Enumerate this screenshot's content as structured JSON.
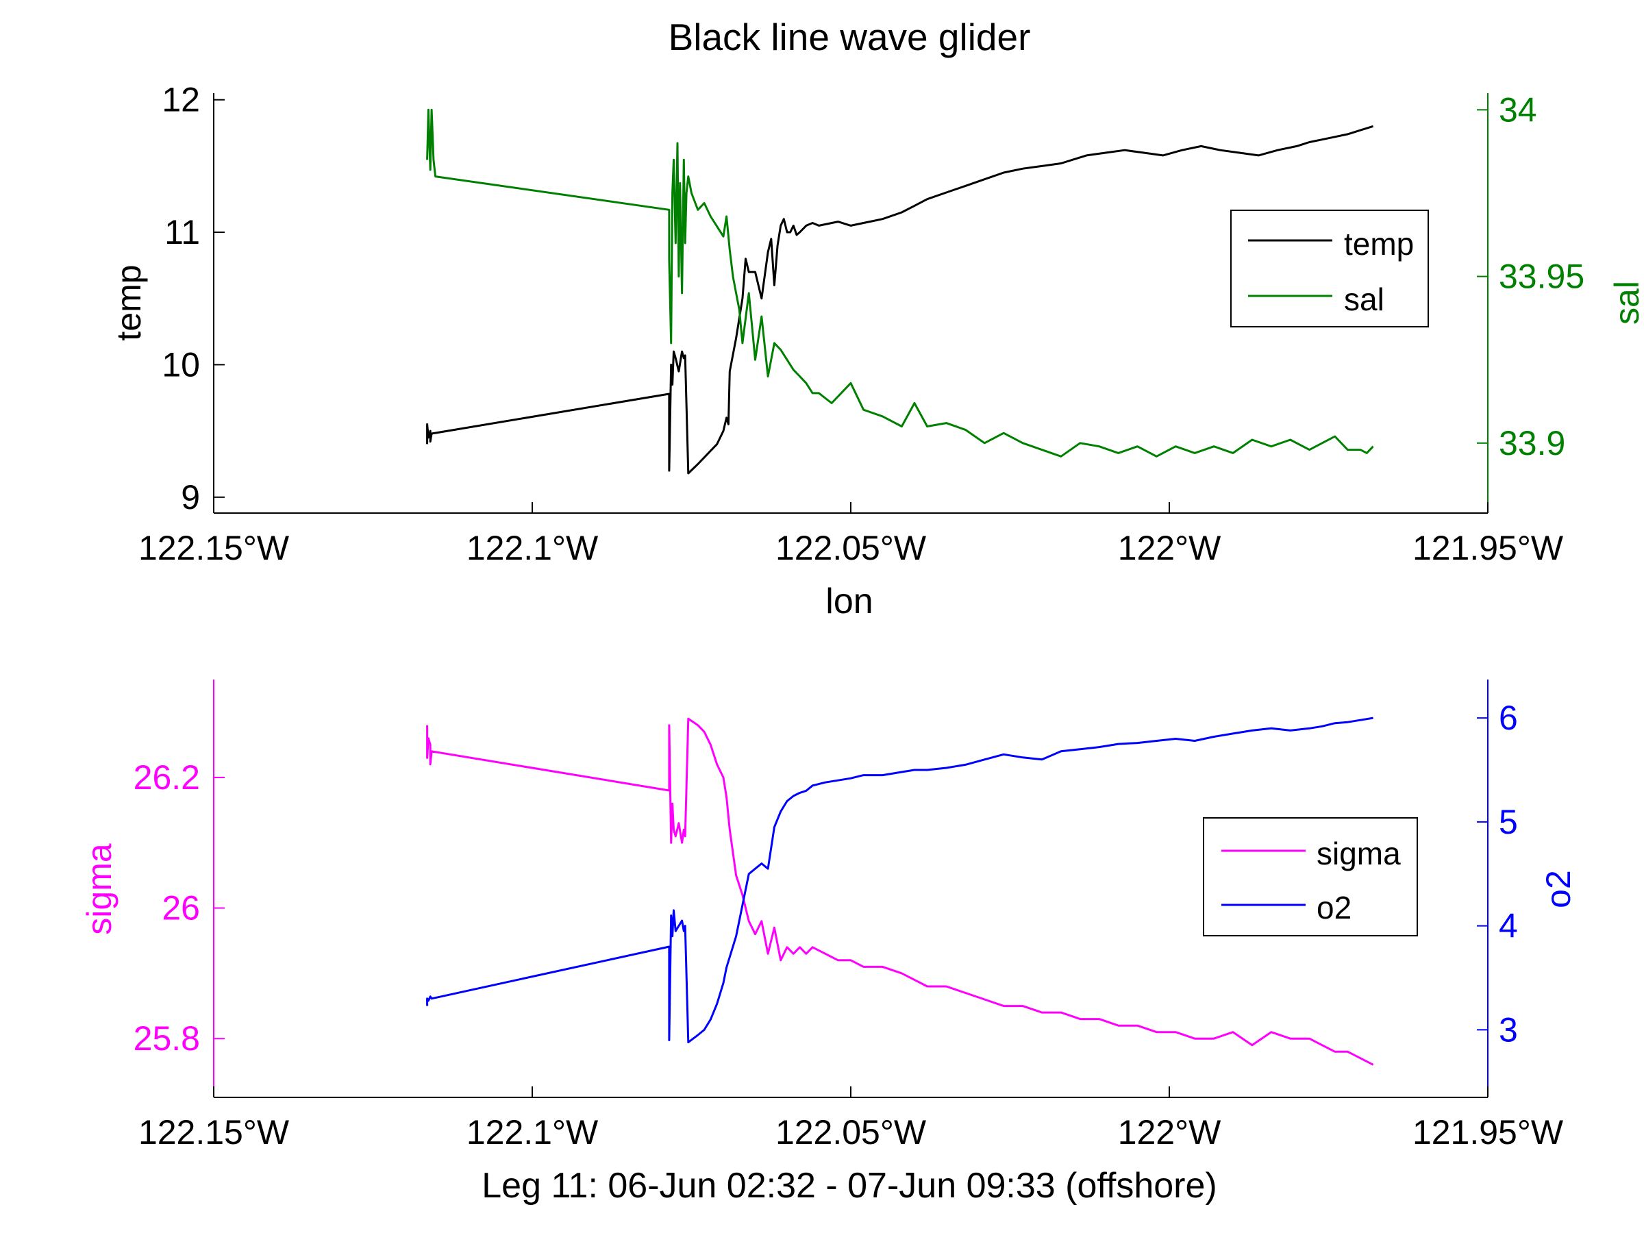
{
  "figure": {
    "title": "Black line wave glider",
    "xlabel_top": "lon",
    "xlabel_bottom": "Leg 11: 06-Jun 02:32 - 07-Jun 09:33 (offshore)"
  },
  "colors": {
    "temp": "#000000",
    "sal": "#008000",
    "sigma": "#ff00ff",
    "o2": "#0000ff",
    "axes": "#000000"
  },
  "chart_data": [
    {
      "type": "line",
      "title": "Black line wave glider",
      "xlabel": "lon",
      "xlim": [
        -122.15,
        -121.95
      ],
      "x_ticks": [
        -122.15,
        -122.1,
        -122.05,
        -122.0,
        -121.95
      ],
      "x_tick_labels": [
        "122.15°W",
        "122.1°W",
        "122.05°W",
        "122°W",
        "121.95°W"
      ],
      "left_axis": {
        "label": "temp",
        "ylim": [
          8.88,
          12.05
        ],
        "ticks": [
          9,
          10,
          11,
          12
        ],
        "tick_labels": [
          "9",
          "10",
          "11",
          "12"
        ]
      },
      "right_axis": {
        "label": "sal",
        "ylim": [
          33.879,
          34.005
        ],
        "ticks": [
          33.9,
          33.95,
          34
        ],
        "tick_labels": [
          "33.9",
          "33.95",
          "34"
        ]
      },
      "legend": {
        "position": "right",
        "entries": [
          "temp",
          "sal"
        ]
      },
      "series": [
        {
          "name": "temp",
          "axis": "left",
          "x": [
            -122.1165,
            -122.1165,
            -122.1163,
            -122.116,
            -122.116,
            -122.1158,
            -122.0785,
            -122.0785,
            -122.0782,
            -122.078,
            -122.0778,
            -122.0775,
            -122.077,
            -122.0765,
            -122.0762,
            -122.076,
            -122.0755,
            -122.074,
            -122.073,
            -122.072,
            -122.071,
            -122.07,
            -122.0695,
            -122.0692,
            -122.069,
            -122.068,
            -122.067,
            -122.0665,
            -122.066,
            -122.065,
            -122.064,
            -122.063,
            -122.0625,
            -122.062,
            -122.0615,
            -122.061,
            -122.0605,
            -122.06,
            -122.0595,
            -122.059,
            -122.0585,
            -122.058,
            -122.057,
            -122.056,
            -122.055,
            -122.052,
            -122.05,
            -122.048,
            -122.045,
            -122.042,
            -122.04,
            -122.038,
            -122.035,
            -122.032,
            -122.029,
            -122.026,
            -122.023,
            -122.02,
            -122.017,
            -122.015,
            -122.013,
            -122.01,
            -122.007,
            -122.004,
            -122.001,
            -121.998,
            -121.995,
            -121.992,
            -121.989,
            -121.986,
            -121.983,
            -121.98,
            -121.978,
            -121.976,
            -121.974,
            -121.972,
            -121.97,
            -121.968
          ],
          "y": [
            9.4,
            9.55,
            9.45,
            9.5,
            9.42,
            9.48,
            9.78,
            9.2,
            10.0,
            9.85,
            10.1,
            10.05,
            9.95,
            10.1,
            10.05,
            10.07,
            9.18,
            9.25,
            9.3,
            9.35,
            9.4,
            9.5,
            9.6,
            9.55,
            9.95,
            10.2,
            10.5,
            10.8,
            10.7,
            10.7,
            10.5,
            10.85,
            10.95,
            10.6,
            10.9,
            11.05,
            11.1,
            11.0,
            11.0,
            11.05,
            10.98,
            11.0,
            11.05,
            11.07,
            11.05,
            11.08,
            11.05,
            11.07,
            11.1,
            11.15,
            11.2,
            11.25,
            11.3,
            11.35,
            11.4,
            11.45,
            11.48,
            11.5,
            11.52,
            11.55,
            11.58,
            11.6,
            11.62,
            11.6,
            11.58,
            11.62,
            11.65,
            11.62,
            11.6,
            11.58,
            11.62,
            11.65,
            11.68,
            11.7,
            11.72,
            11.74,
            11.77,
            11.8
          ]
        },
        {
          "name": "sal",
          "axis": "right",
          "x": [
            -122.1165,
            -122.1163,
            -122.116,
            -122.1158,
            -122.1155,
            -122.1152,
            -122.0785,
            -122.0785,
            -122.0782,
            -122.078,
            -122.0778,
            -122.0775,
            -122.0772,
            -122.077,
            -122.0768,
            -122.0765,
            -122.0762,
            -122.076,
            -122.0758,
            -122.0755,
            -122.075,
            -122.074,
            -122.073,
            -122.072,
            -122.071,
            -122.07,
            -122.0695,
            -122.069,
            -122.0685,
            -122.068,
            -122.0675,
            -122.067,
            -122.066,
            -122.065,
            -122.064,
            -122.063,
            -122.062,
            -122.061,
            -122.06,
            -122.059,
            -122.058,
            -122.057,
            -122.056,
            -122.055,
            -122.053,
            -122.05,
            -122.048,
            -122.045,
            -122.042,
            -122.04,
            -122.038,
            -122.035,
            -122.032,
            -122.029,
            -122.026,
            -122.023,
            -122.02,
            -122.017,
            -122.014,
            -122.011,
            -122.008,
            -122.005,
            -122.002,
            -121.999,
            -121.996,
            -121.993,
            -121.99,
            -121.987,
            -121.984,
            -121.981,
            -121.978,
            -121.976,
            -121.974,
            -121.972,
            -121.97,
            -121.969,
            -121.968
          ],
          "y": [
            33.985,
            34.0,
            33.982,
            34.0,
            33.985,
            33.98,
            33.97,
            33.955,
            33.93,
            33.975,
            33.985,
            33.96,
            33.99,
            33.95,
            33.978,
            33.945,
            33.985,
            33.96,
            33.975,
            33.98,
            33.975,
            33.97,
            33.972,
            33.968,
            33.965,
            33.962,
            33.968,
            33.958,
            33.95,
            33.945,
            33.94,
            33.93,
            33.945,
            33.925,
            33.938,
            33.92,
            33.93,
            33.928,
            33.925,
            33.922,
            33.92,
            33.918,
            33.915,
            33.915,
            33.912,
            33.918,
            33.91,
            33.908,
            33.905,
            33.912,
            33.905,
            33.906,
            33.904,
            33.9,
            33.903,
            33.9,
            33.898,
            33.896,
            33.9,
            33.899,
            33.897,
            33.899,
            33.896,
            33.899,
            33.897,
            33.899,
            33.897,
            33.901,
            33.899,
            33.901,
            33.898,
            33.9,
            33.902,
            33.898,
            33.898,
            33.897,
            33.899
          ]
        }
      ]
    },
    {
      "type": "line",
      "title": "",
      "xlabel": "Leg 11: 06-Jun 02:32 - 07-Jun 09:33 (offshore)",
      "xlim": [
        -122.15,
        -121.95
      ],
      "x_ticks": [
        -122.15,
        -122.1,
        -122.05,
        -122.0,
        -121.95
      ],
      "x_tick_labels": [
        "122.15°W",
        "122.1°W",
        "122.05°W",
        "122°W",
        "121.95°W"
      ],
      "left_axis": {
        "label": "sigma",
        "ylim": [
          25.71,
          26.35
        ],
        "ticks": [
          25.8,
          26,
          26.2
        ],
        "tick_labels": [
          "25.8",
          "26",
          "26.2"
        ]
      },
      "right_axis": {
        "label": "o2",
        "ylim": [
          2.35,
          6.37
        ],
        "ticks": [
          3,
          4,
          5,
          6
        ],
        "tick_labels": [
          "3",
          "4",
          "5",
          "6"
        ]
      },
      "legend": {
        "position": "right",
        "entries": [
          "sigma",
          "o2"
        ]
      },
      "series": [
        {
          "name": "sigma",
          "axis": "left",
          "x": [
            -122.1165,
            -122.1165,
            -122.1163,
            -122.116,
            -122.116,
            -122.1158,
            -122.0785,
            -122.0785,
            -122.0782,
            -122.078,
            -122.0778,
            -122.0775,
            -122.077,
            -122.0765,
            -122.0762,
            -122.076,
            -122.0755,
            -122.074,
            -122.073,
            -122.072,
            -122.071,
            -122.07,
            -122.0695,
            -122.069,
            -122.068,
            -122.067,
            -122.066,
            -122.065,
            -122.064,
            -122.063,
            -122.062,
            -122.061,
            -122.06,
            -122.059,
            -122.058,
            -122.057,
            -122.056,
            -122.054,
            -122.052,
            -122.05,
            -122.048,
            -122.045,
            -122.042,
            -122.04,
            -122.038,
            -122.035,
            -122.032,
            -122.029,
            -122.026,
            -122.023,
            -122.02,
            -122.017,
            -122.014,
            -122.011,
            -122.008,
            -122.005,
            -122.002,
            -121.999,
            -121.996,
            -121.993,
            -121.99,
            -121.987,
            -121.984,
            -121.981,
            -121.978,
            -121.976,
            -121.974,
            -121.972,
            -121.97,
            -121.968
          ],
          "y": [
            26.28,
            26.23,
            26.26,
            26.25,
            26.22,
            26.24,
            26.18,
            26.28,
            26.1,
            26.16,
            26.12,
            26.11,
            26.13,
            26.1,
            26.12,
            26.11,
            26.29,
            26.28,
            26.27,
            26.25,
            26.22,
            26.2,
            26.17,
            26.12,
            26.05,
            26.02,
            25.98,
            25.96,
            25.98,
            25.93,
            25.97,
            25.92,
            25.94,
            25.93,
            25.94,
            25.93,
            25.94,
            25.93,
            25.92,
            25.92,
            25.91,
            25.91,
            25.9,
            25.89,
            25.88,
            25.88,
            25.87,
            25.86,
            25.85,
            25.85,
            25.84,
            25.84,
            25.83,
            25.83,
            25.82,
            25.82,
            25.81,
            25.81,
            25.8,
            25.8,
            25.81,
            25.79,
            25.81,
            25.8,
            25.8,
            25.79,
            25.78,
            25.78,
            25.77,
            25.76
          ]
        },
        {
          "name": "o2",
          "axis": "right",
          "x": [
            -122.1165,
            -122.1165,
            -122.1163,
            -122.116,
            -122.1158,
            -122.0785,
            -122.0785,
            -122.0782,
            -122.078,
            -122.0778,
            -122.0775,
            -122.077,
            -122.0765,
            -122.0762,
            -122.076,
            -122.0755,
            -122.074,
            -122.073,
            -122.072,
            -122.071,
            -122.07,
            -122.0695,
            -122.069,
            -122.068,
            -122.067,
            -122.066,
            -122.065,
            -122.064,
            -122.063,
            -122.062,
            -122.061,
            -122.06,
            -122.059,
            -122.058,
            -122.057,
            -122.056,
            -122.054,
            -122.052,
            -122.05,
            -122.048,
            -122.045,
            -122.042,
            -122.04,
            -122.038,
            -122.035,
            -122.032,
            -122.029,
            -122.026,
            -122.023,
            -122.02,
            -122.017,
            -122.014,
            -122.011,
            -122.008,
            -122.005,
            -122.002,
            -121.999,
            -121.996,
            -121.993,
            -121.99,
            -121.987,
            -121.984,
            -121.981,
            -121.978,
            -121.976,
            -121.974,
            -121.972,
            -121.97,
            -121.968
          ],
          "y": [
            3.23,
            3.3,
            3.28,
            3.32,
            3.3,
            3.8,
            2.9,
            4.1,
            3.9,
            4.15,
            3.95,
            4.0,
            4.05,
            3.95,
            4.0,
            2.88,
            2.95,
            3.0,
            3.1,
            3.25,
            3.45,
            3.6,
            3.7,
            3.9,
            4.2,
            4.5,
            4.55,
            4.6,
            4.55,
            4.95,
            5.1,
            5.2,
            5.25,
            5.28,
            5.3,
            5.35,
            5.38,
            5.4,
            5.42,
            5.45,
            5.45,
            5.48,
            5.5,
            5.5,
            5.52,
            5.55,
            5.6,
            5.65,
            5.62,
            5.6,
            5.68,
            5.7,
            5.72,
            5.75,
            5.76,
            5.78,
            5.8,
            5.78,
            5.82,
            5.85,
            5.88,
            5.9,
            5.88,
            5.9,
            5.92,
            5.95,
            5.96,
            5.98,
            6.0
          ]
        }
      ]
    }
  ]
}
